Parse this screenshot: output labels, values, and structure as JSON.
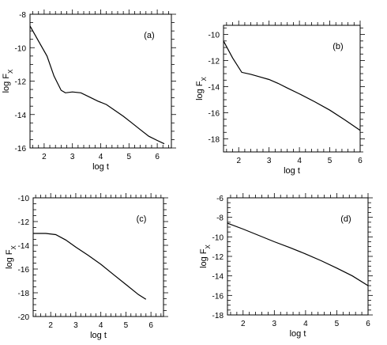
{
  "chart_data": [
    {
      "type": "line",
      "panel_label": "(a)",
      "xlabel": "log t",
      "ylabel": "log F",
      "ylabel_sub": "X",
      "xlim": [
        1.5,
        6.5
      ],
      "ylim": [
        -16,
        -8
      ],
      "xticks": [
        2,
        3,
        4,
        5,
        6
      ],
      "yticks": [
        -16,
        -14,
        -12,
        -10,
        -8
      ],
      "x": [
        1.5,
        1.8,
        2.1,
        2.35,
        2.6,
        2.75,
        3.0,
        3.3,
        3.6,
        3.9,
        4.2,
        4.5,
        4.8,
        5.1,
        5.4,
        5.7,
        6.0,
        6.25
      ],
      "y": [
        -8.7,
        -9.6,
        -10.5,
        -11.7,
        -12.55,
        -12.7,
        -12.65,
        -12.7,
        -12.95,
        -13.2,
        -13.4,
        -13.75,
        -14.1,
        -14.5,
        -14.9,
        -15.3,
        -15.55,
        -15.75
      ]
    },
    {
      "type": "line",
      "panel_label": "(b)",
      "xlabel": "log t",
      "ylabel": "log F",
      "ylabel_sub": "X",
      "xlim": [
        1.5,
        6
      ],
      "ylim": [
        -19,
        -9.3
      ],
      "xticks": [
        2,
        3,
        4,
        5,
        6
      ],
      "yticks": [
        -18,
        -16,
        -14,
        -12,
        -10
      ],
      "x": [
        1.5,
        1.8,
        2.1,
        2.4,
        2.7,
        3.0,
        3.3,
        3.6,
        4.0,
        4.5,
        5.0,
        5.5,
        6.0
      ],
      "y": [
        -10.5,
        -11.8,
        -12.9,
        -13.05,
        -13.25,
        -13.45,
        -13.75,
        -14.1,
        -14.55,
        -15.15,
        -15.8,
        -16.55,
        -17.35
      ]
    },
    {
      "type": "line",
      "panel_label": "(c)",
      "xlabel": "log t",
      "ylabel": "log F",
      "ylabel_sub": "X",
      "xlim": [
        1.3,
        6.5
      ],
      "ylim": [
        -20,
        -10
      ],
      "xticks": [
        2,
        3,
        4,
        5,
        6
      ],
      "yticks": [
        -20,
        -18,
        -16,
        -14,
        -12,
        -10
      ],
      "x": [
        1.3,
        1.8,
        2.2,
        2.6,
        3.0,
        3.5,
        4.0,
        4.5,
        5.0,
        5.5,
        5.8
      ],
      "y": [
        -13,
        -13,
        -13.1,
        -13.55,
        -14.15,
        -14.85,
        -15.6,
        -16.45,
        -17.3,
        -18.15,
        -18.55
      ]
    },
    {
      "type": "line",
      "panel_label": "(d)",
      "xlabel": "log t",
      "ylabel": "log F",
      "ylabel_sub": "X",
      "xlim": [
        1.5,
        6
      ],
      "ylim": [
        -18,
        -6
      ],
      "xticks": [
        2,
        3,
        4,
        5,
        6
      ],
      "yticks": [
        -18,
        -16,
        -14,
        -12,
        -10,
        -8,
        -6
      ],
      "x": [
        1.5,
        2.0,
        2.5,
        3.0,
        3.5,
        4.0,
        4.5,
        5.0,
        5.5,
        6.0
      ],
      "y": [
        -8.6,
        -9.2,
        -9.85,
        -10.5,
        -11.1,
        -11.75,
        -12.45,
        -13.2,
        -14.0,
        -15.0
      ]
    }
  ]
}
